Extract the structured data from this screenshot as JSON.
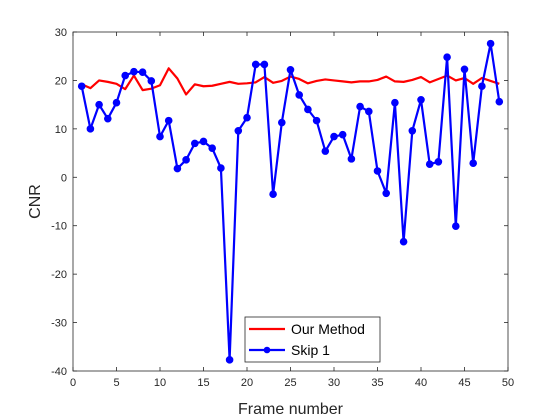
{
  "chart_data": {
    "type": "line",
    "title": "",
    "xlabel": "Frame number",
    "ylabel": "CNR",
    "xlim": [
      0,
      50
    ],
    "ylim": [
      -40,
      30
    ],
    "xticks": [
      0,
      5,
      10,
      15,
      20,
      25,
      30,
      35,
      40,
      45,
      50
    ],
    "yticks": [
      -40,
      -30,
      -20,
      -10,
      0,
      10,
      20,
      30
    ],
    "grid": false,
    "legend_position": "bottom-center",
    "series": [
      {
        "name": "Our Method",
        "color": "#ff0000",
        "marker": "none",
        "x": [
          1,
          2,
          3,
          4,
          5,
          6,
          7,
          8,
          9,
          10,
          11,
          12,
          13,
          14,
          15,
          16,
          17,
          18,
          19,
          20,
          21,
          22,
          23,
          24,
          25,
          26,
          27,
          28,
          29,
          30,
          31,
          32,
          33,
          34,
          35,
          36,
          37,
          38,
          39,
          40,
          41,
          42,
          43,
          44,
          45,
          46,
          47,
          48,
          49
        ],
        "y": [
          19.2,
          18.4,
          20.0,
          19.7,
          19.3,
          18.2,
          21.0,
          18.0,
          18.3,
          19.0,
          22.5,
          20.4,
          17.1,
          19.2,
          18.8,
          18.9,
          19.3,
          19.7,
          19.3,
          19.4,
          19.6,
          20.7,
          19.5,
          19.9,
          20.8,
          20.3,
          19.4,
          19.9,
          20.2,
          20.0,
          19.8,
          19.6,
          19.8,
          19.8,
          20.1,
          20.8,
          19.8,
          19.7,
          20.1,
          20.7,
          19.6,
          20.3,
          21.0,
          20.0,
          20.5,
          19.3,
          20.5,
          19.9,
          19.3
        ]
      },
      {
        "name": "Skip 1",
        "color": "#0000ff",
        "marker": "circle",
        "x": [
          1,
          2,
          3,
          4,
          5,
          6,
          7,
          8,
          9,
          10,
          11,
          12,
          13,
          14,
          15,
          16,
          17,
          18,
          19,
          20,
          21,
          22,
          23,
          24,
          25,
          26,
          27,
          28,
          29,
          30,
          31,
          32,
          33,
          34,
          35,
          36,
          37,
          38,
          39,
          40,
          41,
          42,
          43,
          44,
          45,
          46,
          47,
          48,
          49
        ],
        "y": [
          18.8,
          10.0,
          15.0,
          12.1,
          15.4,
          21.0,
          21.8,
          21.7,
          19.9,
          8.4,
          11.7,
          1.8,
          3.6,
          7.0,
          7.4,
          6.0,
          1.9,
          -37.7,
          9.6,
          12.3,
          23.3,
          23.3,
          -3.5,
          11.3,
          22.2,
          17.0,
          14.0,
          11.7,
          5.4,
          8.4,
          8.8,
          3.8,
          14.6,
          13.6,
          1.3,
          -3.3,
          15.4,
          -13.3,
          9.6,
          16.0,
          2.7,
          3.2,
          24.8,
          -10.1,
          22.3,
          2.9,
          18.8,
          27.6,
          15.6
        ]
      }
    ]
  }
}
